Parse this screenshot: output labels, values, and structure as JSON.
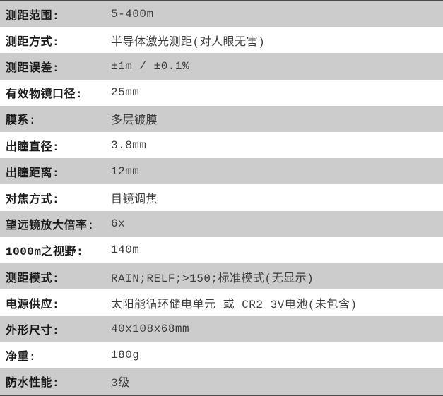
{
  "colors": {
    "row_odd_bg": "#cccccc",
    "row_even_bg": "#ffffff",
    "border": "#4c4c4c",
    "label_text": "#1a1a1a",
    "value_text": "#3d3d3d"
  },
  "spec_table": {
    "rows": [
      {
        "label": "测距范围:",
        "value": "5-400m"
      },
      {
        "label": "测距方式:",
        "value": "半导体激光测距(对人眼无害)"
      },
      {
        "label": "测距误差:",
        "value": "±1m / ±0.1%"
      },
      {
        "label": "有效物镜口径:",
        "value": "25mm"
      },
      {
        "label": "膜系:",
        "value": "多层镀膜"
      },
      {
        "label": "出瞳直径:",
        "value": "3.8mm"
      },
      {
        "label": "出瞳距离:",
        "value": "12mm"
      },
      {
        "label": "对焦方式:",
        "value": "目镜调焦"
      },
      {
        "label": "望远镜放大倍率:",
        "value": "6x"
      },
      {
        "label": "1000m之视野:",
        "value": "140m"
      },
      {
        "label": "测距模式:",
        "value": "RAIN;RELF;>150;标准模式(无显示)"
      },
      {
        "label": "电源供应:",
        "value": "太阳能循环储电单元 或 CR2 3V电池(未包含)"
      },
      {
        "label": "外形尺寸:",
        "value": "40x108x68mm"
      },
      {
        "label": "净重:",
        "value": "180g"
      },
      {
        "label": "防水性能:",
        "value": "3级"
      }
    ]
  }
}
